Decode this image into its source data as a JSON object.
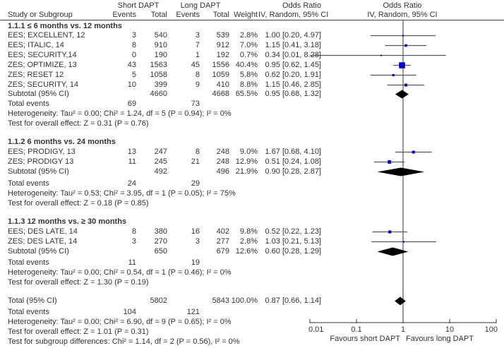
{
  "header": {
    "group1": "Short DAPT",
    "group2": "Long DAPT",
    "col_study": "Study or Subgroup",
    "col_events1": "Events",
    "col_total1": "Total",
    "col_events2": "Events",
    "col_total2": "Total",
    "col_weight": "Weight",
    "col_or_title": "Odds Ratio",
    "col_or_sub": "IV, Random, 95% CI",
    "plot_title": "Odds Ratio",
    "plot_sub": "IV, Random, 95% CI"
  },
  "subgroups": [
    {
      "title": "1.1.1 ≤ 6 months vs. 12 months",
      "studies": [
        {
          "name": "EES; EXCELLENT, 12",
          "e1": "3",
          "n1": "540",
          "e2": "3",
          "n2": "539",
          "weight": "2.8%",
          "ci": "1.00 [0.20, 4.97]"
        },
        {
          "name": "EES; ITALIC, 14",
          "e1": "8",
          "n1": "910",
          "e2": "7",
          "n2": "912",
          "weight": "7.0%",
          "ci": "1.15 [0.41, 3.18]"
        },
        {
          "name": "EES; SECURITY,14",
          "e1": "0",
          "n1": "190",
          "e2": "1",
          "n2": "192",
          "weight": "0.7%",
          "ci": "0.34 [0.01, 8.28]"
        },
        {
          "name": "ZES; OPTIMIZE, 13",
          "e1": "43",
          "n1": "1563",
          "e2": "45",
          "n2": "1556",
          "weight": "40.4%",
          "ci": "0.95 [0.62, 1.45]"
        },
        {
          "name": "ZES; RESET 12",
          "e1": "5",
          "n1": "1058",
          "e2": "8",
          "n2": "1059",
          "weight": "5.8%",
          "ci": "0.62 [0.20, 1.91]"
        },
        {
          "name": "ZES; SECURITY, 14",
          "e1": "10",
          "n1": "399",
          "e2": "9",
          "n2": "410",
          "weight": "8.8%",
          "ci": "1.15 [0.46, 2.85]"
        }
      ],
      "subtotal": {
        "label": "Subtotal (95% CI)",
        "n1": "4660",
        "n2": "4668",
        "weight": "65.5%",
        "ci": "0.95 [0.68, 1.32]"
      },
      "total_events": {
        "label": "Total events",
        "e1": "69",
        "e2": "73"
      },
      "heterogeneity": "Heterogeneity: Tau² = 0.00; Chi² = 1.24, df = 5 (P = 0.94); I² = 0%",
      "overall": "Test for overall effect: Z = 0.31 (P = 0.76)"
    },
    {
      "title": "1.1.2 6 months vs. 24 months",
      "studies": [
        {
          "name": "EES; PRODIGY, 13",
          "e1": "13",
          "n1": "247",
          "e2": "8",
          "n2": "248",
          "weight": "9.0%",
          "ci": "1.67 [0.68, 4.10]"
        },
        {
          "name": "ZES; PRODIGY 13",
          "e1": "11",
          "n1": "245",
          "e2": "21",
          "n2": "248",
          "weight": "12.9%",
          "ci": "0.51 [0.24, 1.08]"
        }
      ],
      "subtotal": {
        "label": "Subtotal (95% CI)",
        "n1": "492",
        "n2": "496",
        "weight": "21.9%",
        "ci": "0.90 [0.28, 2.87]"
      },
      "total_events": {
        "label": "Total events",
        "e1": "24",
        "e2": "29"
      },
      "heterogeneity": "Heterogeneity: Tau² = 0.53; Chi² = 3.95, df = 1 (P = 0.05); I² = 75%",
      "overall": "Test for overall effect: Z = 0.18 (P = 0.85)"
    },
    {
      "title": "1.1.3 12 months vs. ≥ 30 months",
      "studies": [
        {
          "name": "EES; DES LATE, 14",
          "e1": "8",
          "n1": "380",
          "e2": "16",
          "n2": "402",
          "weight": "9.8%",
          "ci": "0.52 [0.22, 1.23]"
        },
        {
          "name": "ZES; DES LATE, 14",
          "e1": "3",
          "n1": "270",
          "e2": "3",
          "n2": "277",
          "weight": "2.8%",
          "ci": "1.03 [0.21, 5.13]"
        }
      ],
      "subtotal": {
        "label": "Subtotal (95% CI)",
        "n1": "650",
        "n2": "679",
        "weight": "12.6%",
        "ci": "0.60 [0.28, 1.29]"
      },
      "total_events": {
        "label": "Total events",
        "e1": "11",
        "e2": "19"
      },
      "heterogeneity": "Heterogeneity: Tau² = 0.00; Chi² = 0.54, df = 1 (P = 0.46); I² = 0%",
      "overall": "Test for overall effect: Z = 1.30 (P = 0.19)"
    }
  ],
  "total": {
    "label": "Total (95% CI)",
    "n1": "5802",
    "n2": "5843",
    "weight": "100.0%",
    "ci": "0.87 [0.66, 1.14]",
    "events_label": "Total events",
    "e1": "104",
    "e2": "121",
    "heterogeneity": "Heterogeneity: Tau² = 0.00; Chi² = 6.90, df = 9 (P = 0.65); I² = 0%",
    "overall": "Test for overall effect: Z = 1.01 (P = 0.31)",
    "subgroup_diff": "Test for subgroup differences: Chi² = 1.14, df = 2 (P = 0.56), I² = 0%"
  },
  "axis": {
    "ticks": [
      "0.01",
      "0.1",
      "1",
      "10",
      "100"
    ],
    "favours_left": "Favours short DAPT",
    "favours_right": "Favours long DAPT"
  },
  "colors": {
    "study_marker": "#0000cc",
    "diamond": "#000000",
    "ci_line": "#555555"
  },
  "chart_data": {
    "type": "forest",
    "scale": "log",
    "xlim": [
      0.01,
      100
    ],
    "reference_line": 1,
    "xticks": [
      0.01,
      0.1,
      1,
      10,
      100
    ],
    "xlabel_left": "Favours short DAPT",
    "xlabel_right": "Favours long DAPT",
    "studies": [
      {
        "name": "EES; EXCELLENT, 12",
        "or": 1.0,
        "lo": 0.2,
        "hi": 4.97,
        "weight": 2.8
      },
      {
        "name": "EES; ITALIC, 14",
        "or": 1.15,
        "lo": 0.41,
        "hi": 3.18,
        "weight": 7.0
      },
      {
        "name": "EES; SECURITY,14",
        "or": 0.34,
        "lo": 0.01,
        "hi": 8.28,
        "weight": 0.7
      },
      {
        "name": "ZES; OPTIMIZE, 13",
        "or": 0.95,
        "lo": 0.62,
        "hi": 1.45,
        "weight": 40.4
      },
      {
        "name": "ZES; RESET 12",
        "or": 0.62,
        "lo": 0.2,
        "hi": 1.91,
        "weight": 5.8
      },
      {
        "name": "ZES; SECURITY, 14",
        "or": 1.15,
        "lo": 0.46,
        "hi": 2.85,
        "weight": 8.8
      },
      {
        "name": "EES; PRODIGY, 13",
        "or": 1.67,
        "lo": 0.68,
        "hi": 4.1,
        "weight": 9.0
      },
      {
        "name": "ZES; PRODIGY 13",
        "or": 0.51,
        "lo": 0.24,
        "hi": 1.08,
        "weight": 12.9
      },
      {
        "name": "EES; DES LATE, 14",
        "or": 0.52,
        "lo": 0.22,
        "hi": 1.23,
        "weight": 9.8
      },
      {
        "name": "ZES; DES LATE, 14",
        "or": 1.03,
        "lo": 0.21,
        "hi": 5.13,
        "weight": 2.8
      }
    ],
    "diamonds": [
      {
        "name": "Subtotal 1.1.1",
        "or": 0.95,
        "lo": 0.68,
        "hi": 1.32
      },
      {
        "name": "Subtotal 1.1.2",
        "or": 0.9,
        "lo": 0.28,
        "hi": 2.87
      },
      {
        "name": "Subtotal 1.1.3",
        "or": 0.6,
        "lo": 0.28,
        "hi": 1.29
      },
      {
        "name": "Total",
        "or": 0.87,
        "lo": 0.66,
        "hi": 1.14
      }
    ]
  }
}
